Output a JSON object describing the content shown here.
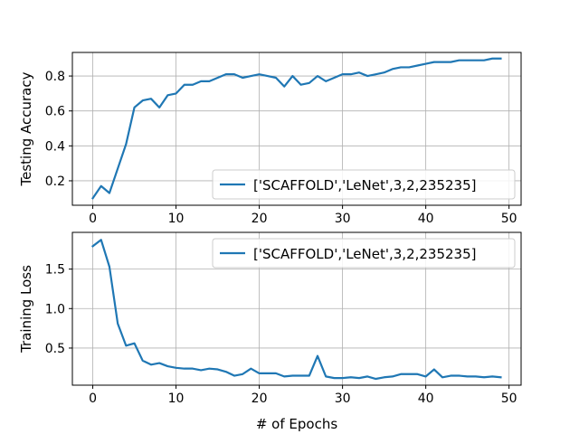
{
  "colors": {
    "series": "#1f77b4",
    "grid": "#b0b0b0",
    "axes": "#000000",
    "legend_border": "#cccccc"
  },
  "chart_data": [
    {
      "type": "line",
      "ylabel": "Testing Accuracy",
      "xlabel": "",
      "xlim": [
        -2.45,
        51.45
      ],
      "ylim": [
        0.06,
        0.935
      ],
      "xticks": [
        0,
        10,
        20,
        30,
        40,
        50
      ],
      "yticks": [
        0.2,
        0.4,
        0.6,
        0.8
      ],
      "ytick_labels": [
        "0.2",
        "0.4",
        "0.6",
        "0.8"
      ],
      "grid": true,
      "legend_position": "lower-right",
      "series": [
        {
          "name": "['SCAFFOLD','LeNet',3,2,235235]",
          "x": [
            0,
            1,
            2,
            3,
            4,
            5,
            6,
            7,
            8,
            9,
            10,
            11,
            12,
            13,
            14,
            15,
            16,
            17,
            18,
            19,
            20,
            21,
            22,
            23,
            24,
            25,
            26,
            27,
            28,
            29,
            30,
            31,
            32,
            33,
            34,
            35,
            36,
            37,
            38,
            39,
            40,
            41,
            42,
            43,
            44,
            45,
            46,
            47,
            48,
            49
          ],
          "values": [
            0.1,
            0.17,
            0.13,
            0.27,
            0.41,
            0.62,
            0.66,
            0.67,
            0.62,
            0.69,
            0.7,
            0.75,
            0.75,
            0.77,
            0.77,
            0.79,
            0.81,
            0.81,
            0.79,
            0.8,
            0.81,
            0.8,
            0.79,
            0.74,
            0.8,
            0.75,
            0.76,
            0.8,
            0.77,
            0.79,
            0.81,
            0.81,
            0.82,
            0.8,
            0.81,
            0.82,
            0.84,
            0.85,
            0.85,
            0.86,
            0.87,
            0.88,
            0.88,
            0.88,
            0.89,
            0.89,
            0.89,
            0.89,
            0.9,
            0.9
          ]
        }
      ]
    },
    {
      "type": "line",
      "ylabel": "Training Loss",
      "xlabel": "# of Epochs",
      "xlim": [
        -2.45,
        51.45
      ],
      "ylim": [
        0.03,
        1.965
      ],
      "xticks": [
        0,
        10,
        20,
        30,
        40,
        50
      ],
      "yticks": [
        0.5,
        1.0,
        1.5
      ],
      "ytick_labels": [
        "0.5",
        "1.0",
        "1.5"
      ],
      "grid": true,
      "legend_position": "upper-right",
      "series": [
        {
          "name": "['SCAFFOLD','LeNet',3,2,235235]",
          "x": [
            0,
            1,
            2,
            3,
            4,
            5,
            6,
            7,
            8,
            9,
            10,
            11,
            12,
            13,
            14,
            15,
            16,
            17,
            18,
            19,
            20,
            21,
            22,
            23,
            24,
            25,
            26,
            27,
            28,
            29,
            30,
            31,
            32,
            33,
            34,
            35,
            36,
            37,
            38,
            39,
            40,
            41,
            42,
            43,
            44,
            45,
            46,
            47,
            48,
            49
          ],
          "values": [
            1.79,
            1.87,
            1.53,
            0.81,
            0.53,
            0.56,
            0.34,
            0.29,
            0.31,
            0.27,
            0.25,
            0.24,
            0.24,
            0.22,
            0.24,
            0.23,
            0.2,
            0.15,
            0.17,
            0.24,
            0.18,
            0.18,
            0.18,
            0.14,
            0.15,
            0.15,
            0.15,
            0.4,
            0.14,
            0.12,
            0.12,
            0.13,
            0.12,
            0.14,
            0.11,
            0.13,
            0.14,
            0.17,
            0.17,
            0.17,
            0.14,
            0.23,
            0.13,
            0.15,
            0.15,
            0.14,
            0.14,
            0.13,
            0.14,
            0.13
          ]
        }
      ]
    }
  ]
}
